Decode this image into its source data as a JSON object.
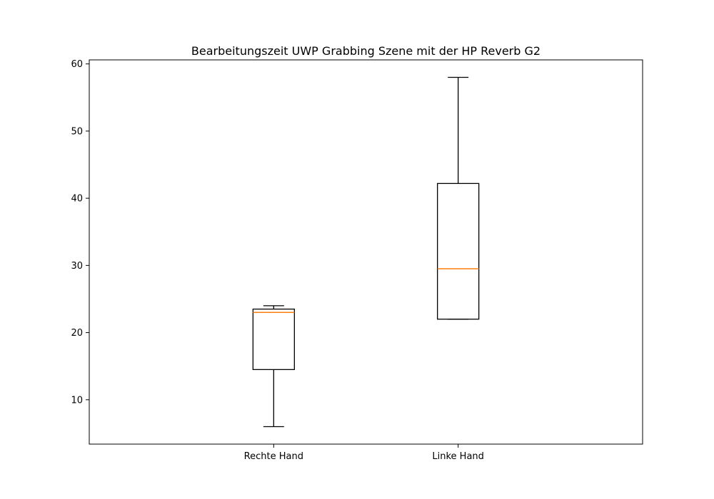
{
  "chart_data": {
    "type": "box",
    "title": "Bearbeitungszeit UWP Grabbing Szene mit der HP Reverb G2",
    "xlabel": "",
    "ylabel": "",
    "categories": [
      "Rechte Hand",
      "Linke Hand"
    ],
    "ylim": [
      3.4,
      60.6
    ],
    "yticks": [
      10,
      20,
      30,
      40,
      50,
      60
    ],
    "grid": false,
    "boxes": [
      {
        "category": "Rechte Hand",
        "whisker_low": 6,
        "q1": 14.5,
        "median": 23,
        "q3": 23.5,
        "whisker_high": 24
      },
      {
        "category": "Linke Hand",
        "whisker_low": 22,
        "q1": 22,
        "median": 29.5,
        "q3": 42.2,
        "whisker_high": 58
      }
    ],
    "colors": {
      "box": "#000000",
      "median": "#ff7f0e",
      "frame": "#000000"
    }
  }
}
